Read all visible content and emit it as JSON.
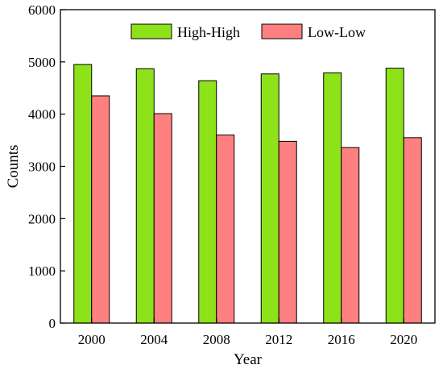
{
  "chart_data": {
    "type": "bar",
    "categories": [
      "2000",
      "2004",
      "2008",
      "2012",
      "2016",
      "2020"
    ],
    "series": [
      {
        "name": "High-High",
        "color": "#8ee21a",
        "values": [
          4950,
          4870,
          4640,
          4770,
          4790,
          4880
        ]
      },
      {
        "name": "Low-Low",
        "color": "#ff8080",
        "values": [
          4350,
          4010,
          3600,
          3480,
          3360,
          3550
        ]
      }
    ],
    "xlabel": "Year",
    "ylabel": "Counts",
    "ylim": [
      0,
      6000
    ],
    "yticks": [
      "0",
      "1000",
      "2000",
      "3000",
      "4000",
      "5000",
      "6000"
    ],
    "grid": false,
    "legend_position": "top-right"
  }
}
